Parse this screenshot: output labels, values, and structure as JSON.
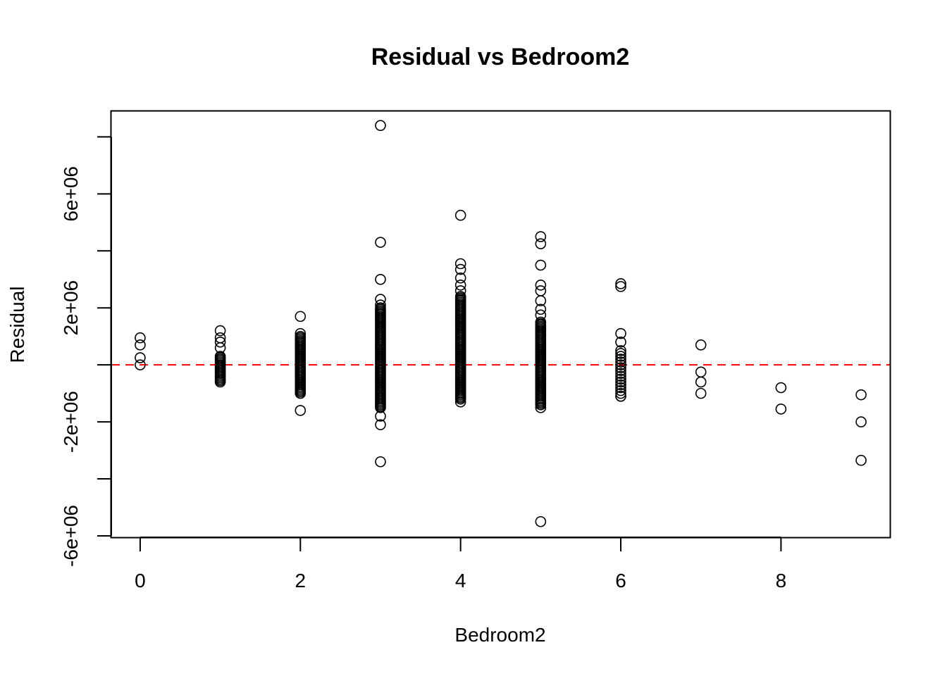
{
  "chart_data": {
    "type": "scatter",
    "title": "Residual vs Bedroom2",
    "xlabel": "Bedroom2",
    "ylabel": "Residual",
    "xlim": [
      -0.36,
      9.36
    ],
    "ylim": [
      -6050000,
      8900000
    ],
    "x_ticks": [
      {
        "value": 0,
        "label": "0"
      },
      {
        "value": 2,
        "label": "2"
      },
      {
        "value": 4,
        "label": "4"
      },
      {
        "value": 6,
        "label": "6"
      },
      {
        "value": 8,
        "label": "8"
      }
    ],
    "y_ticks": [
      {
        "value": -6000000,
        "label": "-6e+06"
      },
      {
        "value": -4000000,
        "label": ""
      },
      {
        "value": -2000000,
        "label": "-2e+06"
      },
      {
        "value": 0,
        "label": ""
      },
      {
        "value": 2000000,
        "label": "2e+06"
      },
      {
        "value": 4000000,
        "label": ""
      },
      {
        "value": 6000000,
        "label": "6e+06"
      },
      {
        "value": 8000000,
        "label": ""
      }
    ],
    "reference_line": {
      "y": 0,
      "color": "#ff0000",
      "style": "dashed"
    },
    "point_color": "#000000",
    "bands": [
      {
        "x": 1,
        "from": -600000,
        "to": 300000,
        "step": 50000
      },
      {
        "x": 2,
        "from": -1000000,
        "to": 1000000,
        "step": 50000
      },
      {
        "x": 3,
        "from": -1500000,
        "to": 2000000,
        "step": 50000
      },
      {
        "x": 4,
        "from": -1200000,
        "to": 2400000,
        "step": 50000
      },
      {
        "x": 5,
        "from": -1400000,
        "to": 1500000,
        "step": 50000
      },
      {
        "x": 6,
        "from": -1100000,
        "to": 500000,
        "step": 100000
      }
    ],
    "points": [
      {
        "x": 0,
        "y": 950000
      },
      {
        "x": 0,
        "y": 700000
      },
      {
        "x": 0,
        "y": 250000
      },
      {
        "x": 0,
        "y": 0
      },
      {
        "x": 1,
        "y": 1200000
      },
      {
        "x": 1,
        "y": 950000
      },
      {
        "x": 1,
        "y": 800000
      },
      {
        "x": 1,
        "y": 600000
      },
      {
        "x": 2,
        "y": 1700000
      },
      {
        "x": 2,
        "y": 1100000
      },
      {
        "x": 2,
        "y": -1600000
      },
      {
        "x": 3,
        "y": 8400000
      },
      {
        "x": 3,
        "y": 4300000
      },
      {
        "x": 3,
        "y": 3000000
      },
      {
        "x": 3,
        "y": 2300000
      },
      {
        "x": 3,
        "y": 2100000
      },
      {
        "x": 3,
        "y": -1800000
      },
      {
        "x": 3,
        "y": -2100000
      },
      {
        "x": 3,
        "y": -3400000
      },
      {
        "x": 4,
        "y": 5250000
      },
      {
        "x": 4,
        "y": 3550000
      },
      {
        "x": 4,
        "y": 3350000
      },
      {
        "x": 4,
        "y": 3050000
      },
      {
        "x": 4,
        "y": 2800000
      },
      {
        "x": 4,
        "y": 2600000
      },
      {
        "x": 4,
        "y": -1300000
      },
      {
        "x": 5,
        "y": 4500000
      },
      {
        "x": 5,
        "y": 4250000
      },
      {
        "x": 5,
        "y": 3500000
      },
      {
        "x": 5,
        "y": 2800000
      },
      {
        "x": 5,
        "y": 2600000
      },
      {
        "x": 5,
        "y": 2250000
      },
      {
        "x": 5,
        "y": 1950000
      },
      {
        "x": 5,
        "y": 1750000
      },
      {
        "x": 5,
        "y": -5500000
      },
      {
        "x": 5,
        "y": -1500000
      },
      {
        "x": 6,
        "y": 2850000
      },
      {
        "x": 6,
        "y": 2750000
      },
      {
        "x": 6,
        "y": 1100000
      },
      {
        "x": 6,
        "y": 800000
      },
      {
        "x": 6,
        "y": -1100000
      },
      {
        "x": 7,
        "y": 700000
      },
      {
        "x": 7,
        "y": -250000
      },
      {
        "x": 7,
        "y": -600000
      },
      {
        "x": 7,
        "y": -1000000
      },
      {
        "x": 8,
        "y": -800000
      },
      {
        "x": 8,
        "y": -1550000
      },
      {
        "x": 9,
        "y": -1050000
      },
      {
        "x": 9,
        "y": -2000000
      },
      {
        "x": 9,
        "y": -3350000
      }
    ]
  }
}
